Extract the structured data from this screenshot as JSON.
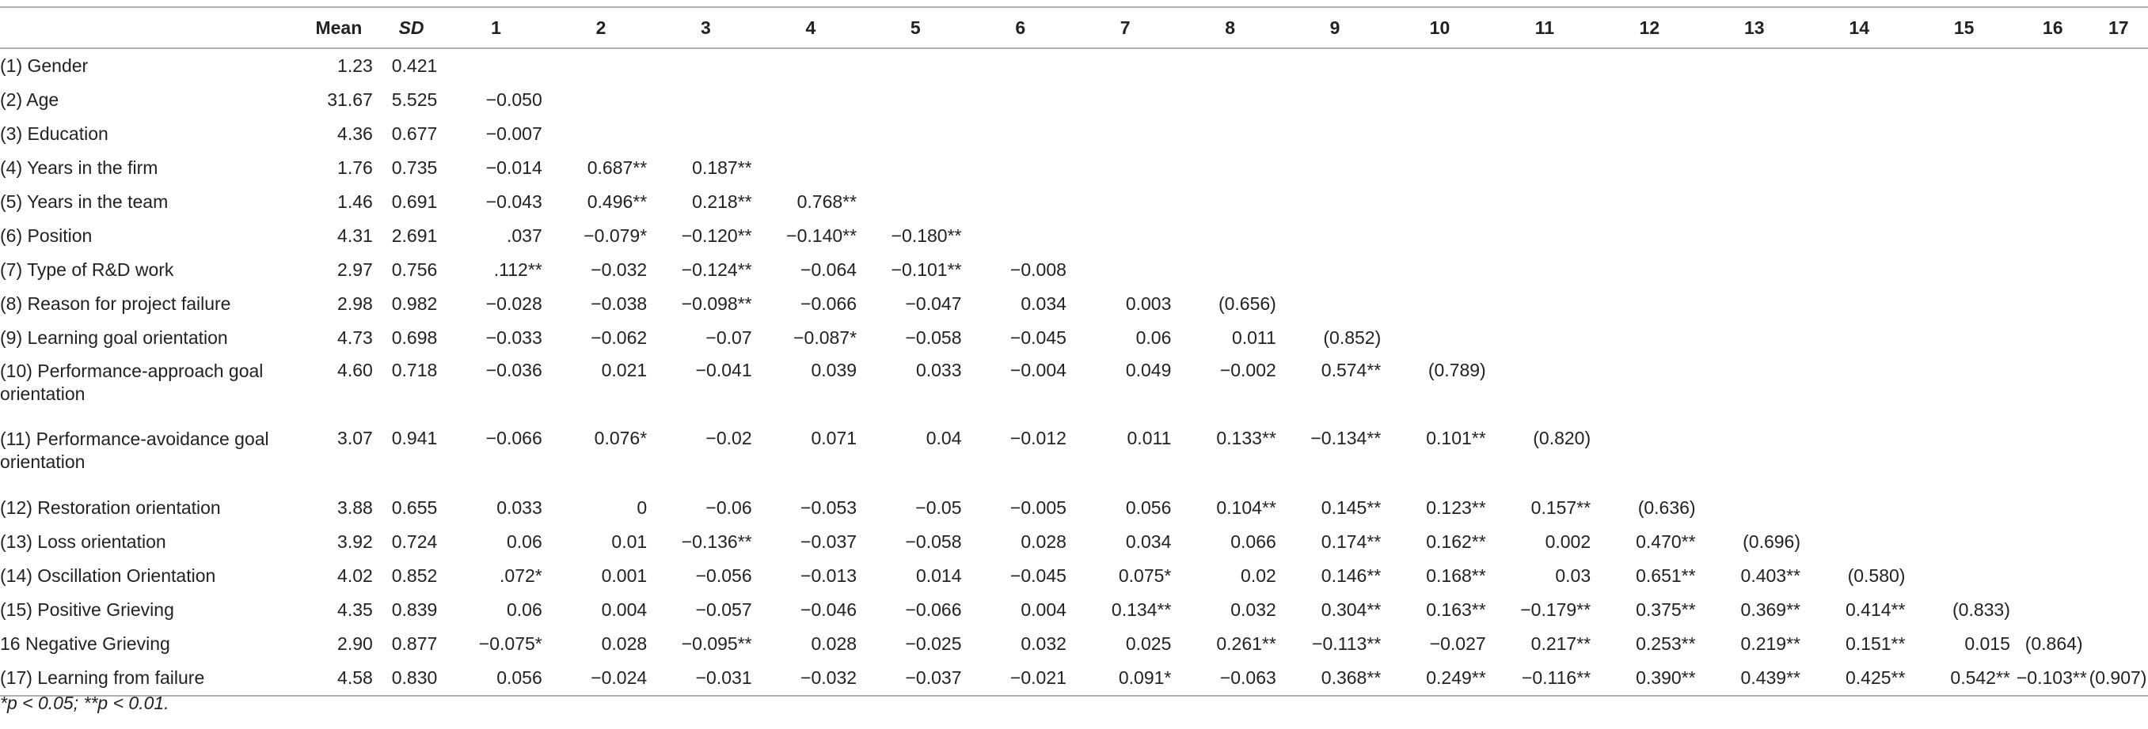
{
  "headers": [
    "",
    "Mean",
    "SD",
    "1",
    "2",
    "3",
    "4",
    "5",
    "6",
    "7",
    "8",
    "9",
    "10",
    "11",
    "12",
    "13",
    "14",
    "15",
    "16",
    "17"
  ],
  "rows": [
    {
      "label": "(1) Gender",
      "mean": "1.23",
      "sd": "0.421",
      "cells": [
        "",
        "",
        "",
        "",
        "",
        "",
        "",
        "",
        "",
        "",
        "",
        "",
        "",
        "",
        "",
        "",
        ""
      ]
    },
    {
      "label": "(2) Age",
      "mean": "31.67",
      "sd": "5.525",
      "cells": [
        "−0.050",
        "",
        "",
        "",
        "",
        "",
        "",
        "",
        "",
        "",
        "",
        "",
        "",
        "",
        "",
        "",
        ""
      ]
    },
    {
      "label": "(3) Education",
      "mean": "4.36",
      "sd": "0.677",
      "cells": [
        "−0.007",
        "",
        "",
        "",
        "",
        "",
        "",
        "",
        "",
        "",
        "",
        "",
        "",
        "",
        "",
        "",
        ""
      ]
    },
    {
      "label": "(4) Years in the firm",
      "mean": "1.76",
      "sd": "0.735",
      "cells": [
        "−0.014",
        "0.687**",
        "0.187**",
        "",
        "",
        "",
        "",
        "",
        "",
        "",
        "",
        "",
        "",
        "",
        "",
        "",
        ""
      ]
    },
    {
      "label": "(5) Years in the team",
      "mean": "1.46",
      "sd": "0.691",
      "cells": [
        "−0.043",
        "0.496**",
        "0.218**",
        "0.768**",
        "",
        "",
        "",
        "",
        "",
        "",
        "",
        "",
        "",
        "",
        "",
        "",
        ""
      ]
    },
    {
      "label": "(6) Position",
      "mean": "4.31",
      "sd": "2.691",
      "cells": [
        ".037",
        "−0.079*",
        "−0.120**",
        "−0.140**",
        "−0.180**",
        "",
        "",
        "",
        "",
        "",
        "",
        "",
        "",
        "",
        "",
        "",
        ""
      ]
    },
    {
      "label": "(7) Type of R&D work",
      "mean": "2.97",
      "sd": "0.756",
      "cells": [
        ".112**",
        "−0.032",
        "−0.124**",
        "−0.064",
        "−0.101**",
        "−0.008",
        "",
        "",
        "",
        "",
        "",
        "",
        "",
        "",
        "",
        "",
        ""
      ]
    },
    {
      "label": "(8) Reason for project failure",
      "mean": "2.98",
      "sd": "0.982",
      "cells": [
        "−0.028",
        "−0.038",
        "−0.098**",
        "−0.066",
        "−0.047",
        "0.034",
        "0.003",
        "(0.656)",
        "",
        "",
        "",
        "",
        "",
        "",
        "",
        "",
        ""
      ]
    },
    {
      "label": "(9) Learning goal orientation",
      "mean": "4.73",
      "sd": "0.698",
      "cells": [
        "−0.033",
        "−0.062",
        "−0.07",
        "−0.087*",
        "−0.058",
        "−0.045",
        "0.06",
        "0.011",
        "(0.852)",
        "",
        "",
        "",
        "",
        "",
        "",
        "",
        ""
      ]
    },
    {
      "label": "(10) Performance-approach goal orientation",
      "mean": "4.60",
      "sd": "0.718",
      "cells": [
        "−0.036",
        "0.021",
        "−0.041",
        "0.039",
        "0.033",
        "−0.004",
        "0.049",
        "−0.002",
        "0.574**",
        "(0.789)",
        "",
        "",
        "",
        "",
        "",
        "",
        ""
      ]
    },
    {
      "label": "(11) Performance-avoidance goal orientation",
      "mean": "3.07",
      "sd": "0.941",
      "cells": [
        "−0.066",
        "0.076*",
        "−0.02",
        "0.071",
        "0.04",
        "−0.012",
        "0.011",
        "0.133**",
        "−0.134**",
        "0.101**",
        "(0.820)",
        "",
        "",
        "",
        "",
        "",
        ""
      ]
    },
    {
      "label": "(12) Restoration orientation",
      "mean": "3.88",
      "sd": "0.655",
      "cells": [
        "0.033",
        "0",
        "−0.06",
        "−0.053",
        "−0.05",
        "−0.005",
        "0.056",
        "0.104**",
        "0.145**",
        "0.123**",
        "0.157**",
        "(0.636)",
        "",
        "",
        "",
        "",
        ""
      ]
    },
    {
      "label": "(13) Loss orientation",
      "mean": "3.92",
      "sd": "0.724",
      "cells": [
        "0.06",
        "0.01",
        "−0.136**",
        "−0.037",
        "−0.058",
        "0.028",
        "0.034",
        "0.066",
        "0.174**",
        "0.162**",
        "0.002",
        "0.470**",
        "(0.696)",
        "",
        "",
        "",
        ""
      ]
    },
    {
      "label": "(14) Oscillation Orientation",
      "mean": "4.02",
      "sd": "0.852",
      "cells": [
        ".072*",
        "0.001",
        "−0.056",
        "−0.013",
        "0.014",
        "−0.045",
        "0.075*",
        "0.02",
        "0.146**",
        "0.168**",
        "0.03",
        "0.651**",
        "0.403**",
        "(0.580)",
        "",
        "",
        ""
      ]
    },
    {
      "label": "(15) Positive Grieving",
      "mean": "4.35",
      "sd": "0.839",
      "cells": [
        "0.06",
        "0.004",
        "−0.057",
        "−0.046",
        "−0.066",
        "0.004",
        "0.134**",
        "0.032",
        "0.304**",
        "0.163**",
        "−0.179**",
        "0.375**",
        "0.369**",
        "0.414**",
        "(0.833)",
        "",
        ""
      ]
    },
    {
      "label": "16 Negative Grieving",
      "mean": "2.90",
      "sd": "0.877",
      "cells": [
        "−0.075*",
        "0.028",
        "−0.095**",
        "0.028",
        "−0.025",
        "0.032",
        "0.025",
        "0.261**",
        "−0.113**",
        "−0.027",
        "0.217**",
        "0.253**",
        "0.219**",
        "0.151**",
        "0.015",
        "(0.864)",
        ""
      ]
    },
    {
      "label": "(17) Learning from failure",
      "mean": "4.58",
      "sd": "0.830",
      "cells": [
        "0.056",
        "−0.024",
        "−0.031",
        "−0.032",
        "−0.037",
        "−0.021",
        "0.091*",
        "−0.063",
        "0.368**",
        "0.249**",
        "−0.116**",
        "0.390**",
        "0.439**",
        "0.425**",
        "0.542**",
        "−0.103**",
        "(0.907)"
      ]
    }
  ],
  "footnote": "*p < 0.05; **p < 0.01."
}
